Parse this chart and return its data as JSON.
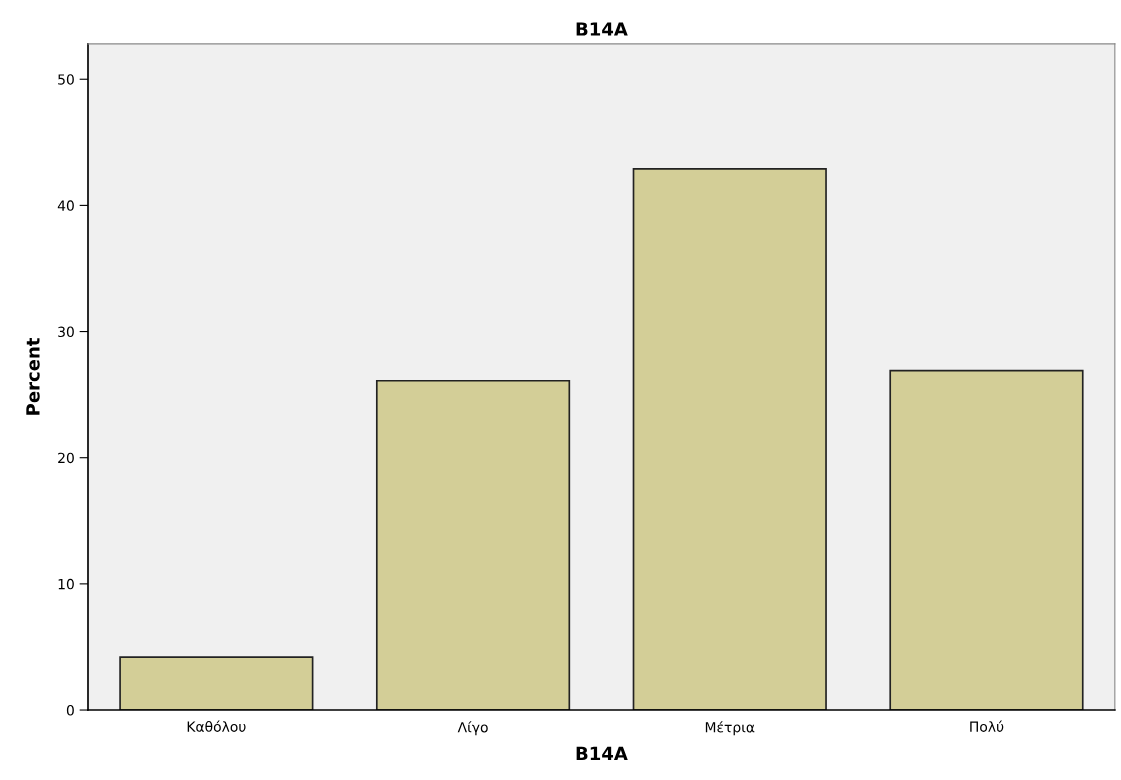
{
  "chart_data": {
    "type": "bar",
    "title": "B14A",
    "xlabel": "B14A",
    "ylabel": "Percent",
    "categories": [
      "Καθόλου",
      "Λίγο",
      "Μέτρια",
      "Πολύ"
    ],
    "values": [
      4.2,
      26.1,
      42.9,
      26.9
    ],
    "color": "#d3ce97",
    "ylim": [
      0,
      52.8
    ],
    "yticks": [
      0,
      10,
      20,
      30,
      40,
      50
    ],
    "grid": false
  }
}
